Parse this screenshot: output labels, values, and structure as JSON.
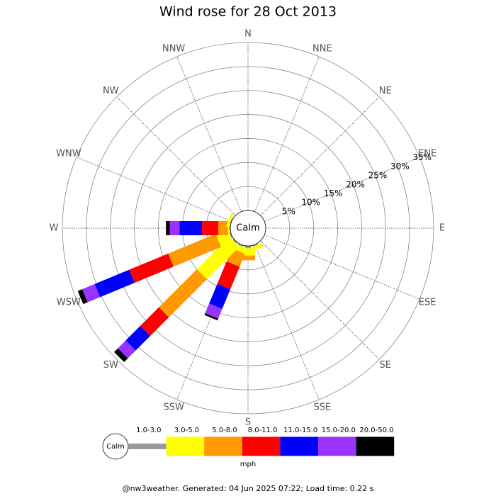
{
  "chart_data": {
    "type": "wind_rose",
    "title": "Wind rose for 28 Oct 2013",
    "directions": [
      "N",
      "NNE",
      "NE",
      "ENE",
      "E",
      "ESE",
      "SE",
      "SSE",
      "S",
      "SSW",
      "SW",
      "WSW",
      "W",
      "WNW",
      "NW",
      "NNW"
    ],
    "series": [
      {
        "name": "1.0-3.0",
        "color": "#999999",
        "values": [
          0,
          0,
          0,
          0,
          0,
          0,
          0,
          0.3,
          0.5,
          0.3,
          0.3,
          0.3,
          0.2,
          0.2,
          0,
          0
        ]
      },
      {
        "name": "3.0-5.0",
        "color": "#ffff00",
        "values": [
          0,
          0,
          0,
          0,
          0,
          0,
          0,
          0.8,
          1.5,
          1.2,
          9.6,
          2.7,
          0.3,
          0.5,
          0,
          0
        ]
      },
      {
        "name": "5.0-8.0",
        "color": "#ff9900",
        "values": [
          0,
          0,
          0,
          0,
          0,
          0,
          0,
          0,
          1.0,
          2.9,
          11.2,
          10.7,
          2.0,
          0,
          0,
          0
        ]
      },
      {
        "name": "8.0-11.0",
        "color": "#ff0000",
        "values": [
          0,
          0,
          0,
          0,
          0,
          0,
          0,
          0,
          0,
          5.1,
          5.5,
          8.8,
          3.4,
          0,
          0,
          0
        ]
      },
      {
        "name": "11.0-15.0",
        "color": "#0000ff",
        "values": [
          0,
          0,
          0,
          0,
          0,
          0,
          0,
          0,
          0,
          4.4,
          4.3,
          7.8,
          4.7,
          0,
          0,
          0
        ]
      },
      {
        "name": "15.0-20.0",
        "color": "#9933ff",
        "values": [
          0,
          0,
          0,
          0,
          0,
          0,
          0,
          0,
          0,
          2.2,
          2.3,
          2.8,
          2.0,
          0,
          0,
          0
        ]
      },
      {
        "name": "20.0-50.0",
        "color": "#000000",
        "values": [
          0,
          0,
          0,
          0,
          0,
          0,
          0,
          0,
          0,
          0.4,
          1.1,
          1.0,
          0.8,
          0,
          0,
          0
        ]
      }
    ],
    "rlim": [
      0,
      35
    ],
    "rticks": [
      {
        "value": 5,
        "label": "5%"
      },
      {
        "value": 10,
        "label": "10%"
      },
      {
        "value": 15,
        "label": "15%"
      },
      {
        "value": 20,
        "label": "20%"
      },
      {
        "value": 25,
        "label": "25%"
      },
      {
        "value": 30,
        "label": "30%"
      },
      {
        "value": 35,
        "label": "35%"
      }
    ],
    "calm_label": "Calm",
    "legend_unit": "mph"
  },
  "footer": "@nw3weather. Generated: 04 Jun 2025 07:22; Load time: 0.22 s"
}
